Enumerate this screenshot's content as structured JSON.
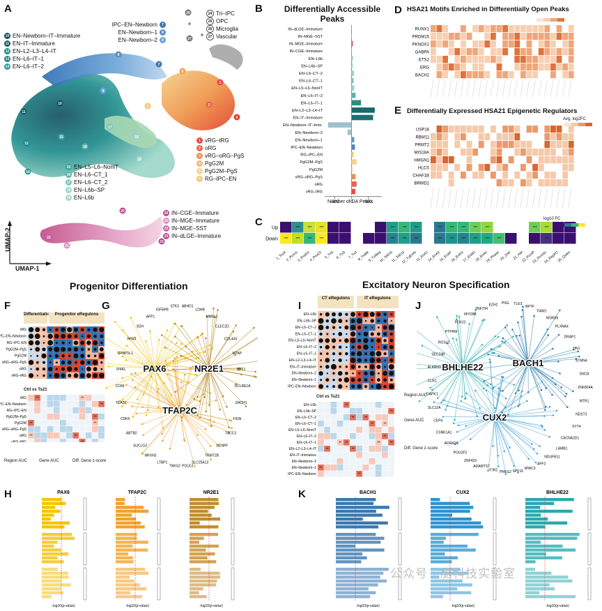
{
  "panels": {
    "A": {
      "letter": "A",
      "axis_y": "UMAP-2",
      "axis_x": "UMAP-1",
      "legend_top": [
        "IPC–EN–Newborn",
        "EN–Newborn–1",
        "EN–Newborn–2"
      ],
      "legend_top_nums": [
        "7",
        "8",
        "9"
      ],
      "legend_right_top": [
        "Tri–IPC",
        "OPC",
        "Microglia",
        "Vascular"
      ],
      "legend_right_top_nums": [
        "24",
        "25",
        "26",
        "27"
      ],
      "legend_left": [
        "EN–Newborn–IT–Immature",
        "EN–IT–Immature",
        "EN–L2–L3–L4–IT",
        "EN–L6–IT–1",
        "EN–L6–IT–2"
      ],
      "legend_left_nums": [
        "10",
        "11",
        "12",
        "13",
        "14"
      ],
      "legend_mid": [
        "vRG–tRG",
        "oRG",
        "vRG–oRG–PgS",
        "PgG2M",
        "PgG2M–PgS",
        "RG–IPC–EN"
      ],
      "legend_mid_nums": [
        "1",
        "2",
        "3",
        "4",
        "5",
        "6"
      ],
      "legend_low": [
        "EN–L5–L6–NonIT",
        "EN–L6–CT_1",
        "EN–L6–CT_2",
        "EN–L6b–SP",
        "EN–L6b"
      ],
      "legend_low_nums": [
        "15",
        "16",
        "17",
        "18",
        "19"
      ],
      "legend_in": [
        "IN–CGE–Immature",
        "IN–MGE–Immature",
        "IN–MGE–SST",
        "IN–dLGE–Immature"
      ],
      "legend_in_nums": [
        "20",
        "21",
        "22",
        "23"
      ]
    },
    "B": {
      "letter": "B",
      "title": "Differentially Accessible Peaks",
      "xlabel": "Number of DA Peaks",
      "xticks": [
        "-500",
        "0",
        "500"
      ]
    },
    "C": {
      "letter": "C",
      "rows": [
        "Up",
        "Down"
      ],
      "cols": [
        "1_TcxA",
        "2_Pcm1i",
        "3_PceD1",
        "4_Pox22",
        "5_Tx5",
        "6_TxS",
        "7_Tx3",
        "8_TxWk",
        "9_TxMeg",
        "10_TcEn5",
        "11_TcEn3",
        "12_TxEmN",
        "13_EnA1",
        "14_EnA2",
        "15_EnAF",
        "16_EnNV",
        "17_EnM2",
        "18_EnAc",
        "19_Phase",
        "20_ZNF",
        "21_Het",
        "22_PcmP",
        "23_PcmSv",
        "24_RepPC",
        "25_Quies"
      ],
      "legend": "log10 FC"
    },
    "D": {
      "letter": "D",
      "title": "HSA21 Motifs Enriched in Differentially Open Peaks",
      "rows": [
        "RUNX1",
        "PRDM15",
        "PKNOX1",
        "GABPA",
        "ETS2",
        "ERG",
        "BACH1"
      ]
    },
    "E": {
      "letter": "E",
      "title": "Differentially Expressed HSA21 Epigenetic Regulators",
      "rows": [
        "USP16",
        "RBM11",
        "PRMT2",
        "MIS18A",
        "HMGN1",
        "HLCS",
        "CHAF1B",
        "BRWD1"
      ],
      "legend": "Avg. log2FC"
    },
    "F": {
      "letter": "F",
      "col_a": "Differentiation",
      "col_b": "Progenitor eRegulons",
      "ctrl_title": "Ctrl vs Ts21",
      "rows": [
        "tRG",
        "IPC–EN–Newborn",
        "RG–IPC–EN",
        "PgG2M–PgS",
        "PgG2M",
        "vRG–oRG–PgS",
        "oRG",
        "vRG–tRG"
      ],
      "legend_a": "Region AUC",
      "legend_b": "Gene AUC",
      "legend_c": "Diff. Gene z-score"
    },
    "G": {
      "letter": "G",
      "hubs": [
        "PAX6",
        "NR2E1",
        "TFAP2C"
      ],
      "genes": [
        "DCLRE1A",
        "DACH1",
        "FIGN",
        "TACC3",
        "CENPF",
        "TRMT2B",
        "SLC25A13",
        "POLE2",
        "TNKS2",
        "LTBP1",
        "NRXN3",
        "SUCLG2",
        "ABTB2",
        "CDK6",
        "TEAD1",
        "CD99",
        "IP4KL",
        "GPBP1L1",
        "RPA3",
        "B2H",
        "AFP1",
        "IGFBP8",
        "STK3",
        "ABHD1",
        "LDHB",
        "MBNL2",
        "CLEC2D",
        "CDL44S",
        "MTAP",
        "NPF1"
      ]
    },
    "H": {
      "letter": "H",
      "cols": [
        "PAX6",
        "TFAP2C",
        "NR2E1"
      ],
      "xlabel": "-log10(p-value)"
    },
    "I": {
      "letter": "I",
      "col_a": "CT eRegulons",
      "col_b": "IT eRegulons",
      "ctrl_title": "Ctrl vs Ts21",
      "rows": [
        "EN–L6b",
        "EN–L6b–SP",
        "EN–L6–CT–2",
        "EN–L6–CT–1",
        "EN–L5–L6–NonIT",
        "EN–L6–IT–2",
        "EN–L6–IT–1",
        "EN–L2–L3–L4–IT",
        "EN–IT–Immature",
        "EN–Newborn–2",
        "EN–Newborn–1",
        "IPC–EN–Newborn"
      ],
      "legend_a": "Region AUC",
      "legend_b": "Gene AUC",
      "legend_c": "Diff. Gene z-score"
    },
    "J": {
      "letter": "J",
      "hubs": [
        "BHLHE22",
        "BACH1",
        "CUX2"
      ],
      "genes": [
        "ZNF804A",
        "MTR1",
        "NDST3",
        "SYT4",
        "CACNA2D1",
        "LAMB1",
        "NDUFB11",
        "AFF2",
        "WWC3",
        "SPY16",
        "PRKG2",
        "ITIR2",
        "ADAMTS7",
        "ZNF423",
        "POU3F2",
        "ADRA2A",
        "CSNK1A1",
        "CEP4",
        "SLC12A",
        "DAPK1",
        "CUX1",
        "ALKBH3",
        "SEC24B",
        "RGS12",
        "PTPRM",
        "FOXJ3",
        "MYO9B",
        "ZNF704",
        "EZH2",
        "PIGL",
        "TLE3",
        "BPTF",
        "TIAM1",
        "WDR56",
        "PLXNA4",
        "DRAP1",
        "HN1",
        "STMN4",
        "SNCA"
      ]
    },
    "K": {
      "letter": "K",
      "cols": [
        "BACH1",
        "CUX2",
        "BHLHE22"
      ],
      "xlabel": "-log10(p-value)"
    },
    "sections": {
      "left": "Progenitor Differentiation",
      "right": "Excitatory Neuron Specification"
    },
    "watermark": "公众号 · 脑科技实验室"
  },
  "chart_data": [
    {
      "type": "bar",
      "title": "Differentially Accessible Peaks",
      "xlabel": "Number of DA Peaks",
      "xlim": [
        -800,
        900
      ],
      "categories": [
        "IN–dLGE–Immature",
        "IN–MGE–SST",
        "IN–MGE–Immature",
        "IN–CGE–Immature",
        "EN–L6b",
        "EN–L6b–SP",
        "EN–L6–CT–2",
        "EN–L6–CT–1",
        "EN–L5–L6–NonIT",
        "EN–L6–IT–2",
        "EN–L6–IT–1",
        "EN–L2–L3–L4–IT",
        "EN–IT–Immature",
        "EN–Newborn–IT–Imm.",
        "EN–Newborn–2",
        "EN–Newborn–1",
        "IPC–EN–Newborn",
        "RG–IPC–EN",
        "PgG2M–PgS",
        "PgG2M",
        "vRG–oRG–PgS",
        "oRG",
        "vRG–tRG"
      ],
      "values": [
        5,
        10,
        40,
        10,
        40,
        30,
        70,
        60,
        80,
        120,
        280,
        690,
        640,
        -700,
        -120,
        80,
        100,
        60,
        150,
        20,
        120,
        150,
        110
      ],
      "colors": [
        "#d98fc0",
        "#d98fc0",
        "#c95aa8",
        "#d98fc0",
        "#9ad3cd",
        "#9ad3cd",
        "#9ad3cd",
        "#7cc5bd",
        "#9ad3cd",
        "#5fb2ac",
        "#2d8a86",
        "#176a6a",
        "#1d6f73",
        "#9fbfcc",
        "#9fbfcc",
        "#5d98bf",
        "#4c86b8",
        "#f2c77a",
        "#f6d28a",
        "#f0b77c",
        "#ec8e5c",
        "#e96448",
        "#e74a40"
      ]
    }
  ]
}
